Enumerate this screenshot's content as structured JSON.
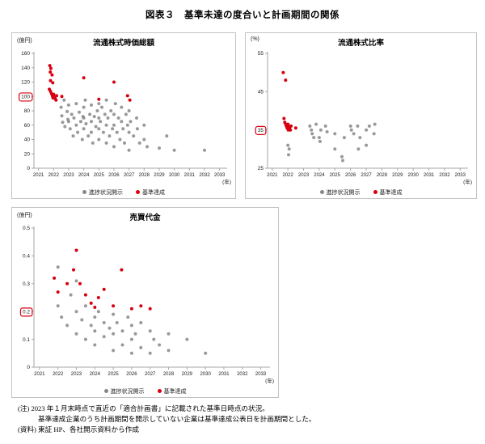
{
  "page": {
    "title": "図表３　基準未達の度合いと計画期間の関係",
    "notes": {
      "line1": "(注) 2023 年１月末時点で直近の「適合計画書」に記載された基準日時点の状況。",
      "line2": "基準達成企業のうち計画期間を開示していない企業は基準達成公表日を計画期間とした。",
      "line3": "(資料) 東証 HP、各社開示資料から作成"
    }
  },
  "legend": {
    "progress_label": "進捗状況開示",
    "achieved_label": "基準達成",
    "progress_color": "#878787",
    "achieved_color": "#d7000f",
    "highlight_box_color": "#d7000f",
    "axis_color": "#a6a6a6"
  },
  "chart_data": [
    {
      "id": "tradable-market-cap",
      "type": "scatter",
      "title": "流通株式時価総額",
      "unit": "(億円)",
      "xlabel": "(年)",
      "xlim": [
        2020.7,
        2033.5
      ],
      "ylim": [
        0,
        160
      ],
      "x_ticks": [
        2021,
        2022,
        2023,
        2024,
        2025,
        2026,
        2027,
        2028,
        2029,
        2030,
        2031,
        2032,
        2033
      ],
      "y_ticks": [
        0,
        20,
        40,
        60,
        80,
        100,
        120,
        140,
        160
      ],
      "y_highlight": 100,
      "series": [
        {
          "name": "進捗状況開示",
          "color": "#878787",
          "points": [
            [
              2022.5,
              85
            ],
            [
              2022.55,
              73
            ],
            [
              2022.6,
              64
            ],
            [
              2022.7,
              95
            ],
            [
              2022.75,
              58
            ],
            [
              2022.9,
              79
            ],
            [
              2022.95,
              68
            ],
            [
              2023.0,
              88
            ],
            [
              2023.0,
              65
            ],
            [
              2023.1,
              55
            ],
            [
              2023.2,
              75
            ],
            [
              2023.3,
              45
            ],
            [
              2023.35,
              70
            ],
            [
              2023.5,
              90
            ],
            [
              2023.5,
              60
            ],
            [
              2023.6,
              50
            ],
            [
              2023.7,
              78
            ],
            [
              2023.8,
              65
            ],
            [
              2023.9,
              40
            ],
            [
              2023.95,
              72
            ],
            [
              2024.0,
              85
            ],
            [
              2024.0,
              70
            ],
            [
              2024.0,
              55
            ],
            [
              2024.1,
              95
            ],
            [
              2024.15,
              62
            ],
            [
              2024.3,
              45
            ],
            [
              2024.4,
              75
            ],
            [
              2024.5,
              88
            ],
            [
              2024.5,
              65
            ],
            [
              2024.5,
              50
            ],
            [
              2024.6,
              35
            ],
            [
              2024.7,
              72
            ],
            [
              2024.8,
              58
            ],
            [
              2024.9,
              80
            ],
            [
              2025.0,
              90
            ],
            [
              2025.0,
              70
            ],
            [
              2025.0,
              55
            ],
            [
              2025.0,
              40
            ],
            [
              2025.1,
              65
            ],
            [
              2025.2,
              85
            ],
            [
              2025.3,
              50
            ],
            [
              2025.4,
              75
            ],
            [
              2025.5,
              95
            ],
            [
              2025.5,
              60
            ],
            [
              2025.5,
              35
            ],
            [
              2025.6,
              70
            ],
            [
              2025.7,
              45
            ],
            [
              2025.8,
              80
            ],
            [
              2025.9,
              55
            ],
            [
              2026.0,
              75
            ],
            [
              2026.0,
              60
            ],
            [
              2026.0,
              30
            ],
            [
              2026.1,
              90
            ],
            [
              2026.2,
              50
            ],
            [
              2026.3,
              70
            ],
            [
              2026.4,
              40
            ],
            [
              2026.5,
              65
            ],
            [
              2026.5,
              85
            ],
            [
              2026.6,
              55
            ],
            [
              2026.7,
              35
            ],
            [
              2026.8,
              75
            ],
            [
              2026.9,
              60
            ],
            [
              2027.0,
              80
            ],
            [
              2027.0,
              50
            ],
            [
              2027.0,
              25
            ],
            [
              2027.1,
              65
            ],
            [
              2027.3,
              45
            ],
            [
              2027.5,
              70
            ],
            [
              2027.55,
              55
            ],
            [
              2027.7,
              35
            ],
            [
              2028.0,
              60
            ],
            [
              2028.0,
              40
            ],
            [
              2028.2,
              30
            ],
            [
              2029.0,
              28
            ],
            [
              2029.5,
              45
            ],
            [
              2030.0,
              25
            ],
            [
              2032.0,
              25
            ]
          ]
        },
        {
          "name": "基準達成",
          "color": "#d7000f",
          "points": [
            [
              2021.75,
              143
            ],
            [
              2021.82,
              139
            ],
            [
              2021.78,
              134
            ],
            [
              2021.9,
              130
            ],
            [
              2021.8,
              122
            ],
            [
              2021.95,
              119
            ],
            [
              2021.72,
              110
            ],
            [
              2021.8,
              107
            ],
            [
              2021.86,
              104
            ],
            [
              2021.92,
              101
            ],
            [
              2021.96,
              98
            ],
            [
              2022.0,
              103
            ],
            [
              2022.05,
              100
            ],
            [
              2022.1,
              97
            ],
            [
              2022.16,
              95
            ],
            [
              2022.2,
              101
            ],
            [
              2022.55,
              100
            ],
            [
              2024.0,
              126
            ],
            [
              2025.0,
              96
            ],
            [
              2026.0,
              120
            ],
            [
              2026.9,
              101
            ],
            [
              2027.05,
              95
            ]
          ]
        }
      ]
    },
    {
      "id": "tradable-share-ratio",
      "type": "scatter",
      "title": "流通株式比率",
      "unit": "(%)",
      "xlabel": "(年)",
      "xlim": [
        2020.7,
        2033.5
      ],
      "ylim": [
        25,
        55
      ],
      "x_ticks": [
        2021,
        2022,
        2023,
        2024,
        2025,
        2026,
        2027,
        2028,
        2029,
        2030,
        2031,
        2032,
        2033
      ],
      "y_ticks": [
        25,
        35,
        45,
        55
      ],
      "y_highlight": 35,
      "series": [
        {
          "name": "進捗状況開示",
          "color": "#878787",
          "points": [
            [
              2022.0,
              31
            ],
            [
              2022.08,
              30
            ],
            [
              2022.04,
              28.5
            ],
            [
              2023.4,
              36
            ],
            [
              2023.5,
              35
            ],
            [
              2023.55,
              34
            ],
            [
              2023.65,
              33
            ],
            [
              2023.8,
              36.5
            ],
            [
              2024.0,
              33
            ],
            [
              2024.05,
              32
            ],
            [
              2024.1,
              35
            ],
            [
              2024.4,
              36
            ],
            [
              2024.5,
              34.5
            ],
            [
              2025.0,
              34
            ],
            [
              2025.0,
              30
            ],
            [
              2025.45,
              28
            ],
            [
              2025.5,
              27
            ],
            [
              2025.6,
              33
            ],
            [
              2026.0,
              36
            ],
            [
              2026.05,
              35
            ],
            [
              2026.2,
              34
            ],
            [
              2026.45,
              36
            ],
            [
              2026.5,
              30
            ],
            [
              2026.6,
              33
            ],
            [
              2027.0,
              35
            ],
            [
              2027.0,
              31
            ],
            [
              2027.2,
              36
            ],
            [
              2027.5,
              34
            ],
            [
              2027.55,
              36.5
            ]
          ]
        },
        {
          "name": "基準達成",
          "color": "#d7000f",
          "points": [
            [
              2021.7,
              50
            ],
            [
              2021.85,
              48
            ],
            [
              2021.75,
              38
            ],
            [
              2021.8,
              37
            ],
            [
              2021.86,
              36.5
            ],
            [
              2021.9,
              36
            ],
            [
              2021.95,
              35.5
            ],
            [
              2022.0,
              36.5
            ],
            [
              2022.02,
              35
            ],
            [
              2022.06,
              36
            ],
            [
              2022.1,
              35.5
            ],
            [
              2022.16,
              35
            ],
            [
              2022.2,
              36
            ],
            [
              2022.5,
              35.5
            ]
          ]
        }
      ]
    },
    {
      "id": "trading-value",
      "type": "scatter",
      "title": "売買代金",
      "unit": "(億円)",
      "xlabel": "(年)",
      "xlim": [
        2020.7,
        2033.5
      ],
      "ylim": [
        0,
        0.5
      ],
      "x_ticks": [
        2021,
        2022,
        2023,
        2024,
        2025,
        2026,
        2027,
        2028,
        2029,
        2030,
        2031,
        2032,
        2033
      ],
      "y_ticks": [
        0,
        0.1,
        0.2,
        0.3,
        0.4,
        0.5
      ],
      "y_highlight": 0.2,
      "series": [
        {
          "name": "進捗状況開示",
          "color": "#878787",
          "points": [
            [
              2022.0,
              0.36
            ],
            [
              2022.0,
              0.22
            ],
            [
              2022.2,
              0.18
            ],
            [
              2022.5,
              0.15
            ],
            [
              2022.7,
              0.26
            ],
            [
              2023.0,
              0.31
            ],
            [
              2023.0,
              0.2
            ],
            [
              2023.0,
              0.12
            ],
            [
              2023.3,
              0.17
            ],
            [
              2023.5,
              0.22
            ],
            [
              2023.5,
              0.1
            ],
            [
              2023.8,
              0.15
            ],
            [
              2024.0,
              0.18
            ],
            [
              2024.0,
              0.13
            ],
            [
              2024.0,
              0.08
            ],
            [
              2024.2,
              0.2
            ],
            [
              2024.5,
              0.16
            ],
            [
              2024.5,
              0.11
            ],
            [
              2024.8,
              0.14
            ],
            [
              2025.0,
              0.19
            ],
            [
              2025.0,
              0.12
            ],
            [
              2025.0,
              0.06
            ],
            [
              2025.2,
              0.16
            ],
            [
              2025.5,
              0.13
            ],
            [
              2025.5,
              0.08
            ],
            [
              2025.8,
              0.18
            ],
            [
              2026.0,
              0.15
            ],
            [
              2026.0,
              0.1
            ],
            [
              2026.0,
              0.05
            ],
            [
              2026.2,
              0.12
            ],
            [
              2026.5,
              0.16
            ],
            [
              2026.5,
              0.07
            ],
            [
              2027.0,
              0.13
            ],
            [
              2027.0,
              0.05
            ],
            [
              2027.2,
              0.1
            ],
            [
              2027.5,
              0.08
            ],
            [
              2028.0,
              0.12
            ],
            [
              2028.0,
              0.06
            ],
            [
              2029.0,
              0.1
            ],
            [
              2030.0,
              0.05
            ]
          ]
        },
        {
          "name": "基準達成",
          "color": "#d7000f",
          "points": [
            [
              2021.8,
              0.32
            ],
            [
              2022.0,
              0.27
            ],
            [
              2022.5,
              0.3
            ],
            [
              2022.85,
              0.35
            ],
            [
              2023.0,
              0.42
            ],
            [
              2023.2,
              0.3
            ],
            [
              2023.5,
              0.26
            ],
            [
              2023.8,
              0.23
            ],
            [
              2024.0,
              0.215
            ],
            [
              2024.2,
              0.25
            ],
            [
              2024.5,
              0.28
            ],
            [
              2025.0,
              0.22
            ],
            [
              2025.45,
              0.35
            ],
            [
              2026.0,
              0.21
            ],
            [
              2026.5,
              0.22
            ],
            [
              2027.0,
              0.21
            ]
          ]
        }
      ]
    }
  ]
}
